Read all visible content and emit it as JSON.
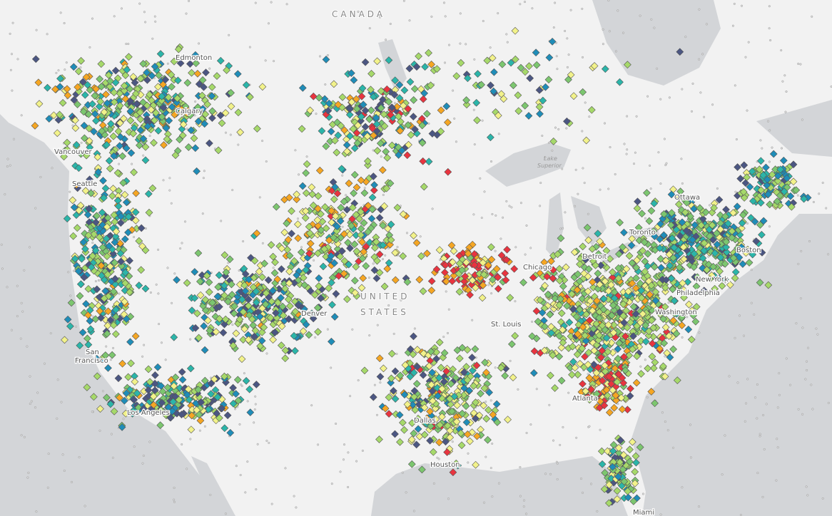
{
  "labels": {
    "canada": "CANADA",
    "united": "UNITED",
    "states": "STATES",
    "lake_superior_1": "Lake",
    "lake_superior_2": "Superior",
    "cities": [
      "Edmonton",
      "Calgary",
      "Vancouver",
      "Seattle",
      "San",
      "Francisco",
      "Los Angeles",
      "Denver",
      "Dallas",
      "Houston",
      "Atlanta",
      "Miami",
      "St. Louis",
      "Chicago",
      "Detroit",
      "Toronto",
      "Ottawa",
      "Boston",
      "New York",
      "Philadelphia",
      "Washington"
    ]
  }
}
